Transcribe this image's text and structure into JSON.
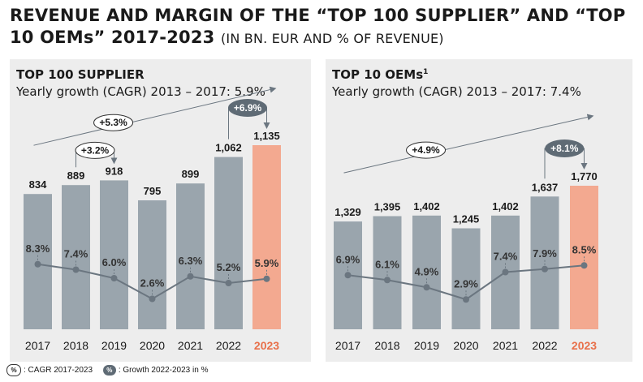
{
  "title_main": "REVENUE AND MARGIN OF THE “TOP 100 SUPPLIER” AND “TOP 10 OEMs” 2017-2023",
  "title_unit": "(IN BN. EUR AND % OF REVENUE)",
  "legend": {
    "chip_symbol": "%",
    "cagr_label": ": CAGR 2017-2023",
    "growth_label": ": Growth 2022-2023 in %"
  },
  "colors": {
    "bar": "#9aa5ad",
    "highlight": "#f3a990",
    "highlight_text": "#e8704a",
    "line": "#6b7680",
    "panel_bg": "#ededed",
    "dark_chip": "#5f6b75"
  },
  "chart_data": [
    {
      "type": "bar",
      "title": "TOP 100 SUPPLIER",
      "title_sup": "",
      "subtitle": "Yearly growth (CAGR) 2013 – 2017: 5.9%",
      "categories": [
        "2017",
        "2018",
        "2019",
        "2020",
        "2021",
        "2022",
        "2023"
      ],
      "highlight_category": "2023",
      "series": [
        {
          "name": "",
          "values": [
            834,
            889,
            918,
            795,
            899,
            1062,
            1135
          ],
          "labels": [
            "834",
            "889",
            "918",
            "795",
            "899",
            "1,062",
            "1,135"
          ]
        },
        {
          "name": "",
          "type": "line",
          "values": [
            8.3,
            7.4,
            6.0,
            2.6,
            6.3,
            5.2,
            5.9
          ],
          "labels": [
            "8.3%",
            "7.4%",
            "6.0%",
            "2.6%",
            "6.3%",
            "5.2%",
            "5.9%"
          ]
        }
      ],
      "annotations": {
        "cagr": "+5.3%",
        "cagr_short": "+3.2%",
        "growth": "+6.9%"
      }
    },
    {
      "type": "bar",
      "title": "TOP 10 OEMs",
      "title_sup": "1",
      "subtitle": "Yearly growth (CAGR) 2013 – 2017: 7.4%",
      "categories": [
        "2017",
        "2018",
        "2019",
        "2020",
        "2021",
        "2022",
        "2023"
      ],
      "highlight_category": "2023",
      "series": [
        {
          "name": "",
          "values": [
            1329,
            1395,
            1402,
            1245,
            1402,
            1637,
            1770
          ],
          "labels": [
            "1,329",
            "1,395",
            "1,402",
            "1,245",
            "1,402",
            "1,637",
            "1,770"
          ]
        },
        {
          "name": "",
          "type": "line",
          "values": [
            6.9,
            6.1,
            4.9,
            2.9,
            7.4,
            7.9,
            8.5
          ],
          "labels": [
            "6.9%",
            "6.1%",
            "4.9%",
            "2.9%",
            "7.4%",
            "7.9%",
            "8.5%"
          ]
        }
      ],
      "annotations": {
        "cagr": "+4.9%",
        "growth": "+8.1%"
      }
    }
  ]
}
